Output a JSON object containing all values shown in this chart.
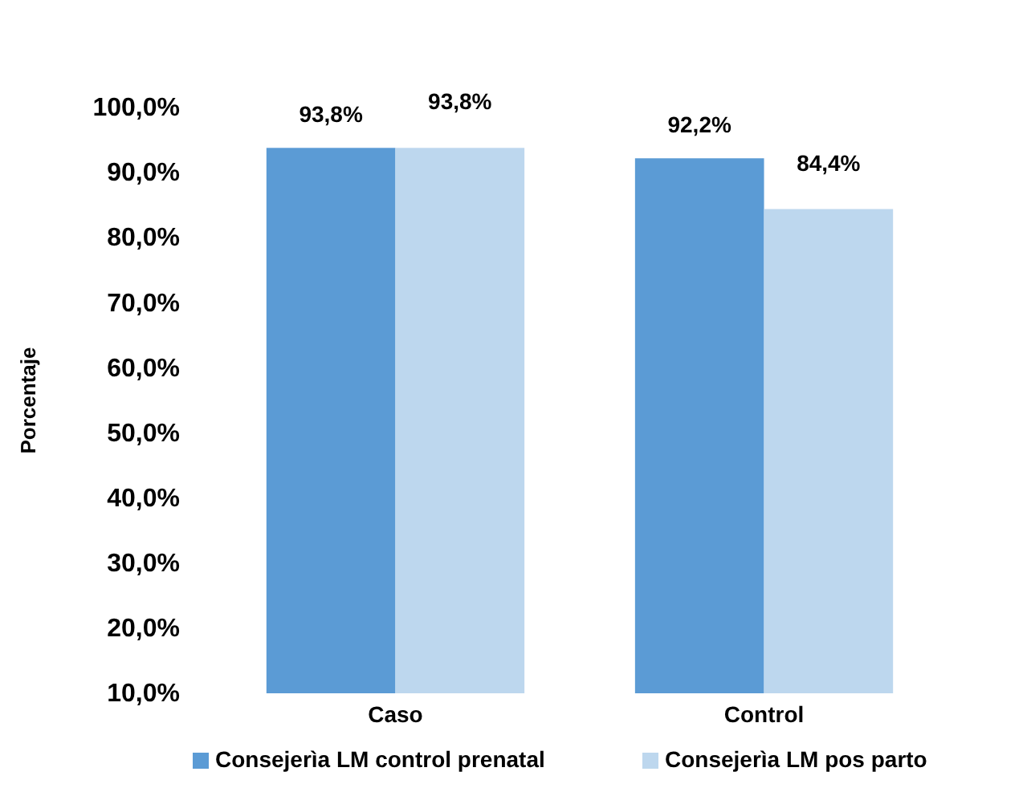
{
  "chart_data": {
    "type": "bar",
    "ylabel": "Porcentaje",
    "categories": [
      "Caso",
      "Control"
    ],
    "series": [
      {
        "name": "Consejerìa LM control prenatal",
        "color": "#5b9bd5",
        "values": [
          93.8,
          92.2
        ],
        "value_labels": [
          "93,8%",
          "92,2%"
        ]
      },
      {
        "name": "Consejerìa LM pos parto",
        "color": "#bdd7ee",
        "values": [
          93.8,
          84.4
        ],
        "value_labels": [
          "93,8%",
          "84,4%"
        ]
      }
    ],
    "ylim": [
      10,
      100
    ],
    "yticks": [
      {
        "value": 10,
        "label": "10,0%"
      },
      {
        "value": 20,
        "label": "20,0%"
      },
      {
        "value": 30,
        "label": "30,0%"
      },
      {
        "value": 40,
        "label": "40,0%"
      },
      {
        "value": 50,
        "label": "50,0%"
      },
      {
        "value": 60,
        "label": "60,0%"
      },
      {
        "value": 70,
        "label": "70,0%"
      },
      {
        "value": 80,
        "label": "80,0%"
      },
      {
        "value": 90,
        "label": "90,0%"
      },
      {
        "value": 100,
        "label": "100,0%"
      }
    ],
    "grid": false,
    "legend": "bottom"
  }
}
